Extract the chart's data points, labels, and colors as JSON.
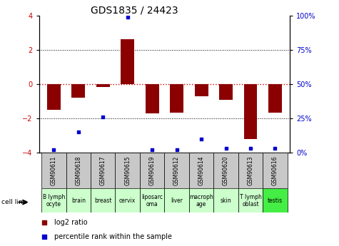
{
  "title": "GDS1835 / 24423",
  "samples": [
    "GSM90611",
    "GSM90618",
    "GSM90617",
    "GSM90615",
    "GSM90619",
    "GSM90612",
    "GSM90614",
    "GSM90620",
    "GSM90613",
    "GSM90616"
  ],
  "cell_lines": [
    "B lymph\nocyte",
    "brain",
    "breast",
    "cervix",
    "liposarc\noma",
    "liver",
    "macroph\nage",
    "skin",
    "T lymph\noblast",
    "testis"
  ],
  "cell_line_colors": [
    "#ccffcc",
    "#ccffcc",
    "#ccffcc",
    "#ccffcc",
    "#ccffcc",
    "#ccffcc",
    "#ccffcc",
    "#ccffcc",
    "#ccffcc",
    "#44ee44"
  ],
  "log2_ratio": [
    -1.5,
    -0.8,
    -0.15,
    2.65,
    -1.7,
    -1.65,
    -0.7,
    -0.9,
    -3.2,
    -1.65
  ],
  "percentile_rank": [
    2,
    15,
    26,
    99,
    2,
    2,
    10,
    3,
    3,
    3
  ],
  "ylim": [
    -4,
    4
  ],
  "y2lim": [
    0,
    100
  ],
  "yticks_left": [
    -4,
    -2,
    0,
    2,
    4
  ],
  "yticks_right": [
    0,
    25,
    50,
    75,
    100
  ],
  "bar_color": "#8b0000",
  "dot_color": "#0000cc",
  "zero_line_color": "#cc0000",
  "dotted_color": "#000000",
  "sample_box_color": "#c8c8c8",
  "title_fontsize": 10,
  "tick_fontsize": 7,
  "sample_fontsize": 5.5,
  "cell_fontsize": 5.5,
  "legend_fontsize": 7
}
